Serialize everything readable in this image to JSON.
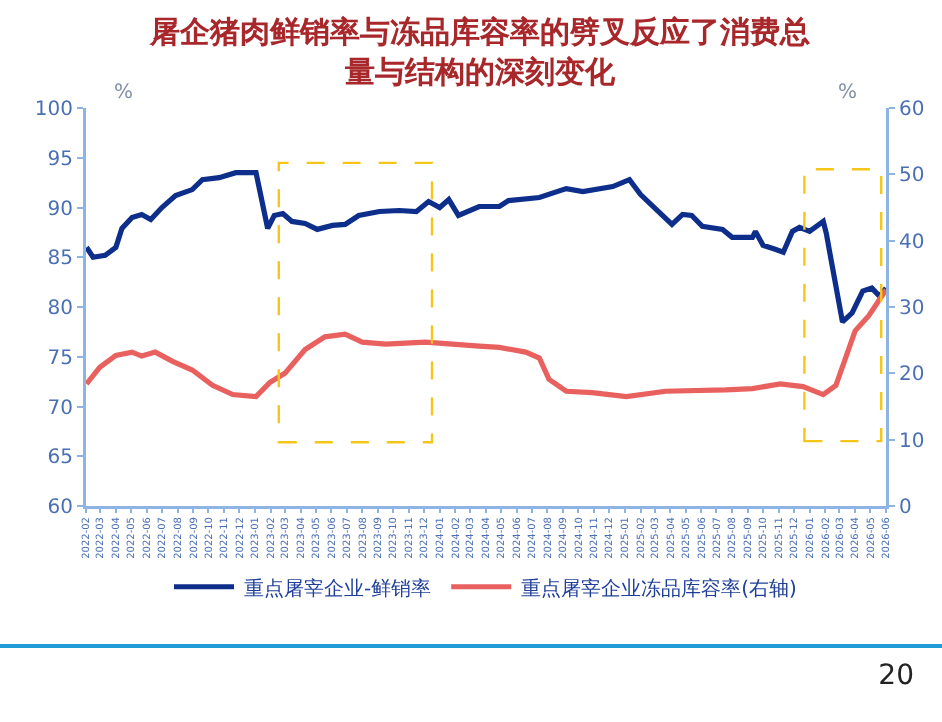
{
  "chart_data": {
    "type": "line",
    "title": "屠企猪肉鲜销率与冻品库容率的劈叉反应了消费总量与结构的深刻变化",
    "ylabel": "%",
    "y2label": "%",
    "xlim": [
      "2022-02-01",
      "2026-06-01"
    ],
    "xticks": [
      "2022-02",
      "2022-03",
      "2022-04",
      "2022-05",
      "2022-06",
      "2022-07",
      "2022-08",
      "2022-09",
      "2022-10",
      "2022-11",
      "2022-12",
      "2023-01",
      "2023-02",
      "2023-03",
      "2023-04",
      "2023-05",
      "2023-06",
      "2023-07",
      "2023-08",
      "2023-09",
      "2023-10",
      "2023-11",
      "2023-12",
      "2024-01",
      "2024-02",
      "2024-03",
      "2024-04",
      "2024-05",
      "2024-06",
      "2024-07",
      "2024-08",
      "2024-09",
      "2024-10",
      "2024-11",
      "2024-12",
      "2025-01",
      "2025-02",
      "2025-03",
      "2025-04",
      "2025-05",
      "2025-06",
      "2025-07",
      "2025-08",
      "2025-09",
      "2025-10",
      "2025-11",
      "2025-12",
      "2026-01",
      "2026-02",
      "2026-03",
      "2026-04",
      "2026-05",
      "2026-06"
    ],
    "ylim": [
      60,
      100
    ],
    "yticks": [
      60,
      65,
      70,
      75,
      80,
      85,
      90,
      95,
      100
    ],
    "y2lim": [
      0,
      60
    ],
    "y2ticks": [
      0,
      10,
      20,
      30,
      40,
      50,
      60
    ],
    "grid": false,
    "legend": "bottom",
    "marker": "none",
    "line_style": "solid",
    "series": [
      {
        "name": "重点屠宰企业-鲜销率",
        "color": "#0d2e8a",
        "x": [
          "2022-02-02",
          "2022-02-15",
          "2022-03-11",
          "2022-04-01",
          "2022-04-13",
          "2022-05-03",
          "2022-05-22",
          "2022-06-09",
          "2022-07-01",
          "2022-07-28",
          "2022-08-30",
          "2022-09-19",
          "2022-10-22",
          "2022-11-24",
          "2023-01-03",
          "2023-01-10",
          "2023-01-26",
          "2023-02-08",
          "2023-02-25",
          "2023-03-15",
          "2023-04-10",
          "2023-05-04",
          "2023-06-03",
          "2023-06-28",
          "2023-07-25",
          "2023-09-04",
          "2023-10-13",
          "2023-11-16",
          "2023-12-10",
          "2024-01-01",
          "2024-01-19",
          "2024-02-07",
          "2024-03-19",
          "2024-04-28",
          "2024-05-16",
          "2024-07-16",
          "2024-09-07",
          "2024-10-10",
          "2024-12-08",
          "2025-01-10",
          "2025-02-01",
          "2025-03-10",
          "2025-04-04",
          "2025-04-25",
          "2025-05-13",
          "2025-06-03",
          "2025-07-13",
          "2025-08-01",
          "2025-09-10",
          "2025-09-16",
          "2025-10-01",
          "2025-10-25",
          "2025-11-10",
          "2025-11-28",
          "2025-12-12",
          "2026-01-01",
          "2026-01-28",
          "2026-02-03",
          "2026-02-13",
          "2026-03-07",
          "2026-03-26",
          "2026-04-16",
          "2026-05-04",
          "2026-05-19",
          "2026-06-01"
        ],
        "values": [
          86.0,
          85.0,
          85.2,
          86.0,
          87.9,
          89.0,
          89.3,
          88.8,
          90.0,
          91.2,
          91.8,
          92.8,
          93.0,
          93.5,
          93.5,
          91.8,
          87.9,
          89.2,
          89.4,
          88.6,
          88.4,
          87.8,
          88.2,
          88.3,
          89.2,
          89.6,
          89.7,
          89.6,
          90.6,
          90.0,
          90.8,
          89.2,
          90.1,
          90.1,
          90.7,
          91.0,
          91.9,
          91.6,
          92.1,
          92.8,
          91.3,
          89.5,
          88.3,
          89.3,
          89.2,
          88.1,
          87.8,
          87.0,
          87.0,
          87.6,
          86.2,
          85.8,
          85.5,
          87.6,
          88.0,
          87.6,
          88.6,
          87.4,
          84.6,
          78.5,
          79.4,
          81.6,
          81.9,
          81.1,
          81.9
        ]
      },
      {
        "name": "重点屠宰企业冻品库容率(右轴)",
        "color": "#e8615e",
        "axis": "y2",
        "x": [
          "2022-02-02",
          "2022-02-28",
          "2022-04-01",
          "2022-05-03",
          "2022-05-22",
          "2022-06-18",
          "2022-07-22",
          "2022-08-30",
          "2022-10-09",
          "2022-11-18",
          "2023-01-03",
          "2023-01-30",
          "2023-03-01",
          "2023-04-10",
          "2023-05-19",
          "2023-06-28",
          "2023-08-01",
          "2023-09-16",
          "2023-12-04",
          "2024-03-19",
          "2024-04-28",
          "2024-06-19",
          "2024-07-16",
          "2024-08-04",
          "2024-09-07",
          "2024-10-28",
          "2025-01-04",
          "2025-03-22",
          "2025-07-19",
          "2025-09-10",
          "2025-11-04",
          "2025-12-19",
          "2026-01-28",
          "2026-02-22",
          "2026-03-13",
          "2026-04-01",
          "2026-04-28",
          "2026-06-01"
        ],
        "values": [
          18.4,
          20.9,
          22.7,
          23.2,
          22.6,
          23.2,
          21.8,
          20.5,
          18.2,
          16.8,
          16.5,
          18.6,
          20.0,
          23.6,
          25.5,
          25.9,
          24.7,
          24.4,
          24.7,
          24.1,
          23.9,
          23.2,
          22.3,
          19.1,
          17.3,
          17.1,
          16.5,
          17.3,
          17.5,
          17.7,
          18.4,
          18.0,
          16.8,
          18.2,
          22.3,
          26.4,
          28.7,
          32.6
        ]
      }
    ],
    "annotations": [
      "20"
    ]
  }
}
